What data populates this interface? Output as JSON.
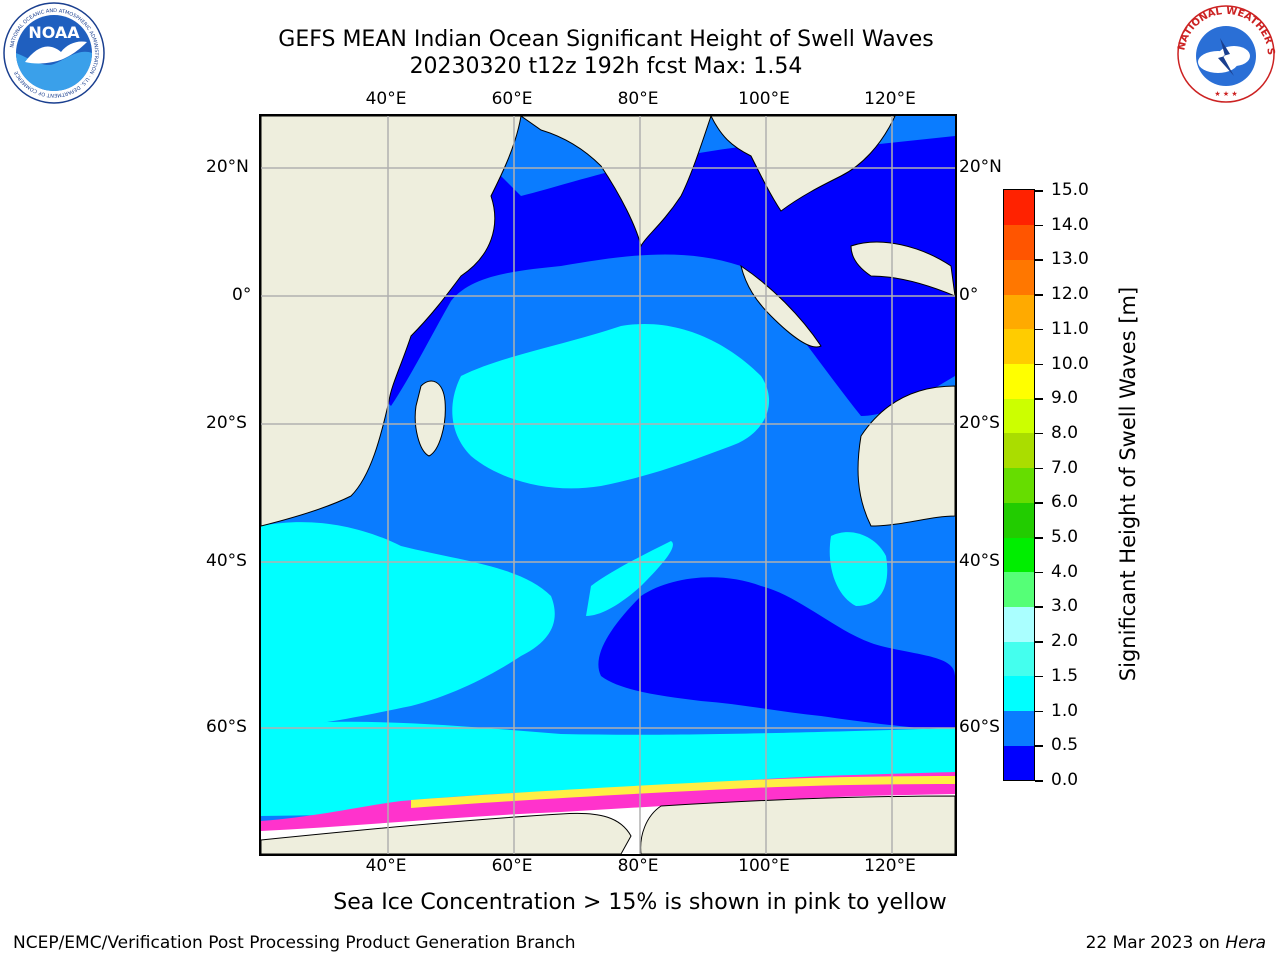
{
  "title": {
    "line1": "GEFS MEAN Indian Ocean Significant Height of Swell Waves",
    "line2": "20230320 t12z 192h fcst   Max: 1.54"
  },
  "logos": {
    "left_icon": "noaa-logo",
    "left_text": "NOAA",
    "left_ring_text": "NATIONAL OCEANIC AND ATMOSPHERIC ADMINISTRATION · U.S. DEPARTMENT OF COMMERCE",
    "right_icon": "nws-logo",
    "right_ring_text": "NATIONAL WEATHER SERVICE"
  },
  "map": {
    "lon_labels": [
      "40°E",
      "60°E",
      "80°E",
      "100°E",
      "120°E"
    ],
    "lat_labels": [
      "20°N",
      "0°",
      "20°S",
      "40°S",
      "60°S"
    ],
    "lon_range": [
      20,
      130
    ],
    "lat_range": [
      -76,
      28
    ],
    "grid": true,
    "colors": {
      "land": "#eeeedd",
      "sea_ice": "#ffffff",
      "ice_pink": "#ff33cc",
      "ice_yellow": "#ffee44"
    }
  },
  "colorbar": {
    "title": "Significant Height of Swell Waves [m]",
    "levels": [
      "0.0",
      "0.5",
      "1.0",
      "1.5",
      "2.0",
      "3.0",
      "4.0",
      "5.0",
      "6.0",
      "7.0",
      "8.0",
      "9.0",
      "10.0",
      "11.0",
      "12.0",
      "13.0",
      "14.0",
      "15.0"
    ],
    "colors": [
      "#0000ff",
      "#0a7cff",
      "#00ffff",
      "#44ffee",
      "#aaffff",
      "#55ff77",
      "#00ee00",
      "#22cc00",
      "#66dd00",
      "#aadd00",
      "#ccff00",
      "#ffff00",
      "#ffcc00",
      "#ffaa00",
      "#ff7700",
      "#ff5500",
      "#ff2200"
    ]
  },
  "footnote": "Sea Ice Concentration > 15% is shown in pink to yellow",
  "credit_left": "NCEP/EMC/Verification Post Processing Product Generation Branch",
  "credit_right_prefix": "22 Mar 2023 on ",
  "credit_right_host": "Hera"
}
